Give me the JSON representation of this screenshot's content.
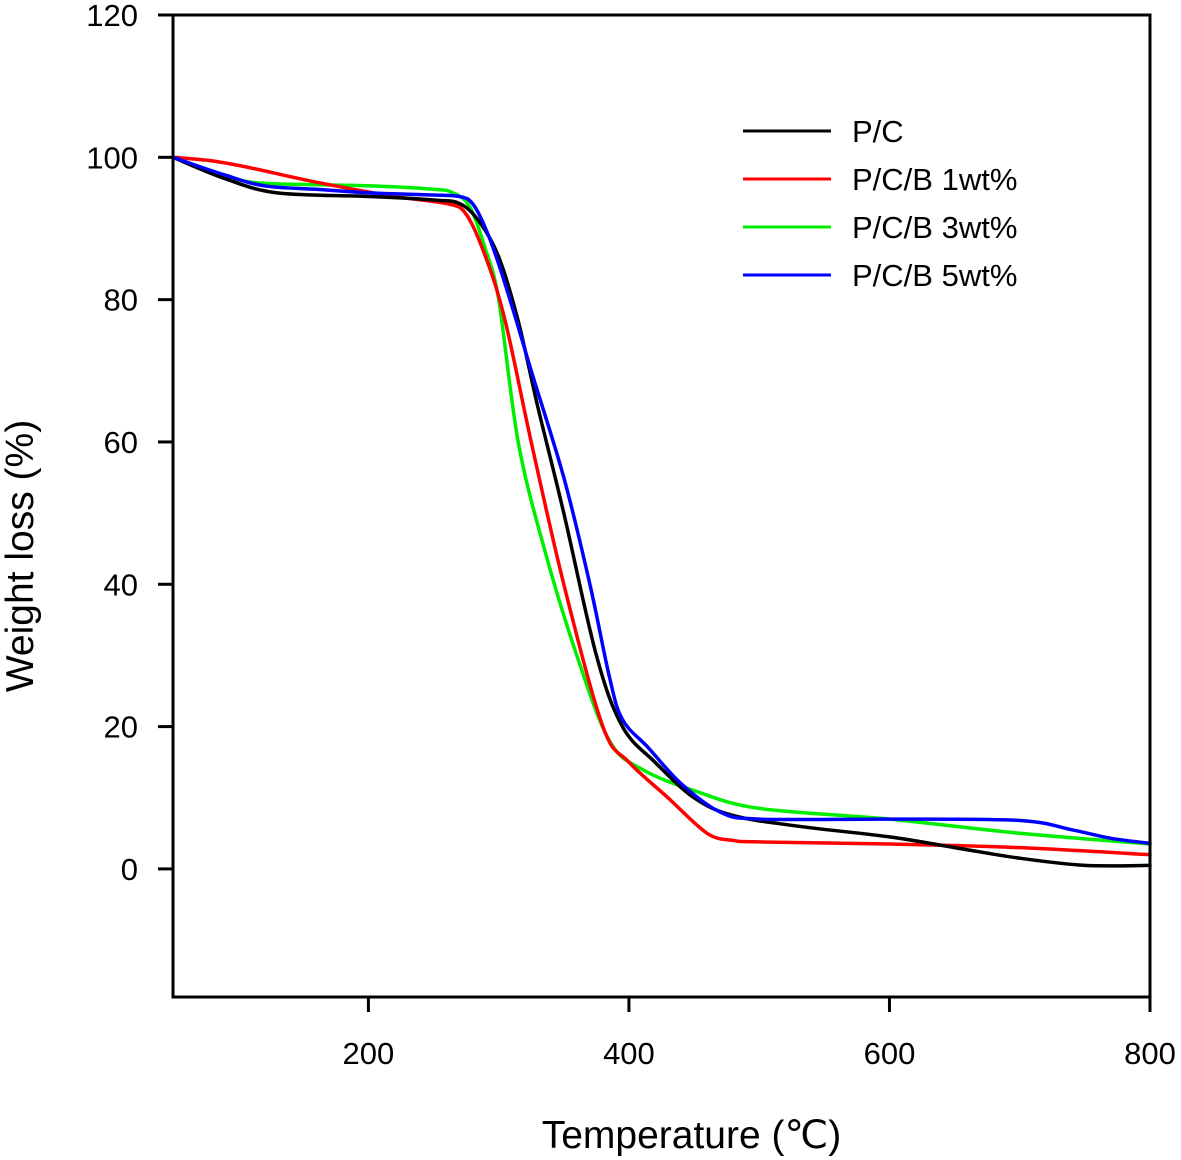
{
  "chart_data": {
    "type": "line",
    "title": "",
    "xlabel": "Temperature (℃)",
    "ylabel": "Weight loss (%)",
    "xlim": [
      50,
      800
    ],
    "ylim": [
      -18,
      120
    ],
    "xticks": [
      200,
      400,
      600,
      800
    ],
    "xtick_labels": [
      "200",
      "400",
      "600",
      "800"
    ],
    "yticks": [
      0,
      20,
      40,
      60,
      80,
      100,
      120
    ],
    "ytick_labels": [
      "0",
      "20",
      "40",
      "60",
      "80",
      "100",
      "120"
    ],
    "grid": false,
    "legend_position": "top-right",
    "series": [
      {
        "name": "P/C",
        "color": "#000000",
        "x": [
          50,
          90,
          130,
          200,
          250,
          270,
          285,
          300,
          315,
          330,
          350,
          375,
          395,
          420,
          450,
          480,
          530,
          600,
          650,
          700,
          750,
          800
        ],
        "y": [
          100,
          97,
          95,
          94.5,
          94,
          93.5,
          91,
          86,
          77,
          65,
          50,
          30,
          20,
          15,
          10,
          7.5,
          6,
          4.5,
          3,
          1.5,
          0.5,
          0.5
        ]
      },
      {
        "name": "P/C/B 1wt%",
        "color": "#ff0000",
        "x": [
          50,
          80,
          110,
          160,
          220,
          260,
          275,
          290,
          305,
          325,
          350,
          380,
          400,
          430,
          460,
          480,
          500,
          600,
          700,
          800
        ],
        "y": [
          100,
          99.5,
          98.5,
          96.5,
          94.5,
          93.5,
          92,
          86,
          77,
          60,
          40,
          20,
          15,
          10,
          5,
          4,
          3.8,
          3.5,
          3,
          2
        ]
      },
      {
        "name": "P/C/B 3wt%",
        "color": "#00ee00",
        "x": [
          50,
          80,
          110,
          150,
          200,
          250,
          265,
          278,
          290,
          300,
          315,
          335,
          360,
          385,
          410,
          450,
          500,
          600,
          700,
          800
        ],
        "y": [
          100,
          98,
          96.5,
          96.2,
          96,
          95.5,
          95,
          93,
          87,
          80,
          60,
          45,
          30,
          18,
          14,
          11,
          8.5,
          7,
          5,
          3.5
        ]
      },
      {
        "name": "P/C/B 5wt%",
        "color": "#0000ff",
        "x": [
          50,
          90,
          120,
          160,
          200,
          250,
          270,
          280,
          290,
          300,
          312,
          325,
          350,
          370,
          385,
          395,
          415,
          440,
          470,
          500,
          600,
          700,
          740,
          770,
          800
        ],
        "y": [
          100,
          97.5,
          96,
          95.5,
          95,
          94.7,
          94.5,
          93.5,
          90,
          85,
          78,
          70,
          55,
          40,
          27,
          21,
          17,
          12,
          8,
          7,
          7,
          6.8,
          5.5,
          4.3,
          3.6
        ]
      }
    ]
  }
}
